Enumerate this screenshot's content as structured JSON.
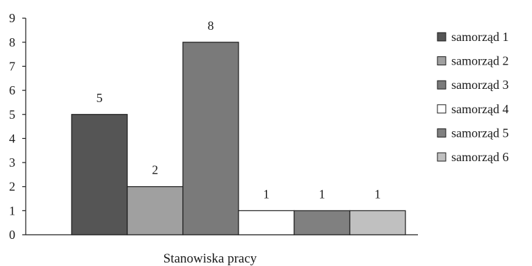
{
  "chart_data": {
    "type": "bar",
    "title": "",
    "xlabel": "Stanowiska pracy",
    "ylabel": "",
    "ylim": [
      0,
      9
    ],
    "yticks": [
      0,
      1,
      2,
      3,
      4,
      5,
      6,
      7,
      8,
      9
    ],
    "grid": false,
    "legend_position": "right",
    "series": [
      {
        "name": "samorząd 1",
        "value": 5,
        "color": "#555555"
      },
      {
        "name": "samorząd 2",
        "value": 2,
        "color": "#a0a0a0"
      },
      {
        "name": "samorząd 3",
        "value": 8,
        "color": "#7a7a7a"
      },
      {
        "name": "samorząd 4",
        "value": 1,
        "color": "#ffffff"
      },
      {
        "name": "samorząd 5",
        "value": 1,
        "color": "#808080"
      },
      {
        "name": "samorząd 6",
        "value": 1,
        "color": "#c0c0c0"
      }
    ]
  }
}
